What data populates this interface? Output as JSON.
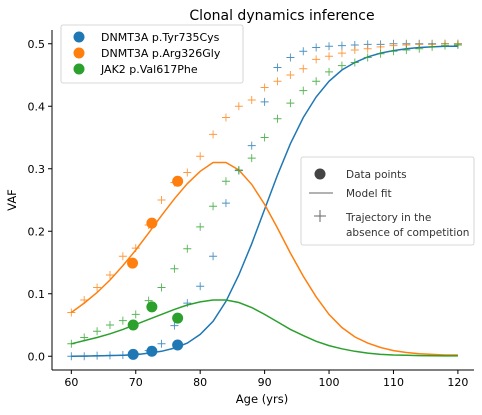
{
  "chart_data": {
    "type": "scatter",
    "title": "Clonal dynamics inference",
    "xlabel": "Age (yrs)",
    "ylabel": "VAF",
    "xlim": [
      57,
      122.5
    ],
    "ylim": [
      -0.022,
      0.522
    ],
    "x_ticks": [
      60,
      70,
      80,
      90,
      100,
      110,
      120
    ],
    "y_ticks": [
      0.0,
      0.1,
      0.2,
      0.3,
      0.4,
      0.5
    ],
    "x_tick_labels": [
      "60",
      "70",
      "80",
      "90",
      "100",
      "110",
      "120"
    ],
    "y_tick_labels": [
      "0.0",
      "0.1",
      "0.2",
      "0.3",
      "0.4",
      "0.5"
    ],
    "grid": false,
    "series": [
      {
        "name": "DNMT3A p.Tyr735Cys",
        "color": "#1f77b4",
        "data_points": {
          "x": [
            69.6,
            72.5,
            76.5
          ],
          "y": [
            0.003,
            0.008,
            0.018
          ]
        },
        "model_fit": {
          "x": [
            60,
            64,
            68,
            70,
            72,
            74,
            76,
            78,
            80,
            82,
            84,
            86,
            88,
            90,
            92,
            94,
            96,
            98,
            100,
            102,
            104,
            106,
            108,
            110,
            112,
            114,
            116,
            118,
            120
          ],
          "y": [
            0.0,
            0.0005,
            0.0015,
            0.0025,
            0.005,
            0.008,
            0.013,
            0.021,
            0.035,
            0.056,
            0.088,
            0.13,
            0.18,
            0.235,
            0.29,
            0.34,
            0.382,
            0.415,
            0.44,
            0.458,
            0.47,
            0.479,
            0.485,
            0.489,
            0.492,
            0.494,
            0.495,
            0.496,
            0.496
          ]
        },
        "trajectory": {
          "x": [
            60,
            62,
            64,
            66,
            68,
            70,
            72,
            74,
            76,
            78,
            80,
            82,
            84,
            86,
            88,
            90,
            92,
            94,
            96,
            98,
            100,
            102,
            104,
            106,
            108,
            110,
            112,
            114,
            116,
            118,
            120
          ],
          "y": [
            0.0,
            0.0,
            0.001,
            0.0015,
            0.002,
            0.004,
            0.009,
            0.02,
            0.049,
            0.085,
            0.112,
            0.16,
            0.245,
            0.297,
            0.337,
            0.407,
            0.462,
            0.478,
            0.488,
            0.494,
            0.496,
            0.497,
            0.498,
            0.499,
            0.499,
            0.5,
            0.5,
            0.5,
            0.5,
            0.5,
            0.5
          ]
        }
      },
      {
        "name": "DNMT3A p.Arg326Gly",
        "color": "#ff7f0e",
        "data_points": {
          "x": [
            69.5,
            72.5,
            76.5
          ],
          "y": [
            0.149,
            0.213,
            0.28
          ]
        },
        "model_fit": {
          "x": [
            60,
            62,
            64,
            66,
            68,
            70,
            72,
            74,
            76,
            78,
            80,
            82,
            84,
            86,
            88,
            90,
            92,
            94,
            96,
            98,
            100,
            102,
            104,
            106,
            108,
            110,
            112,
            114,
            116,
            118,
            120
          ],
          "y": [
            0.07,
            0.085,
            0.102,
            0.122,
            0.145,
            0.17,
            0.197,
            0.225,
            0.252,
            0.276,
            0.296,
            0.31,
            0.31,
            0.298,
            0.275,
            0.243,
            0.205,
            0.165,
            0.128,
            0.095,
            0.067,
            0.046,
            0.031,
            0.021,
            0.014,
            0.009,
            0.006,
            0.004,
            0.003,
            0.002,
            0.002
          ]
        },
        "trajectory": {
          "x": [
            60,
            62,
            64,
            66,
            68,
            70,
            72,
            74,
            76,
            78,
            80,
            82,
            84,
            86,
            88,
            90,
            92,
            94,
            96,
            98,
            100,
            102,
            104,
            106,
            108,
            110,
            112,
            114,
            116,
            118,
            120
          ],
          "y": [
            0.07,
            0.09,
            0.11,
            0.13,
            0.16,
            0.173,
            0.21,
            0.25,
            0.278,
            0.294,
            0.32,
            0.355,
            0.382,
            0.4,
            0.41,
            0.43,
            0.44,
            0.45,
            0.46,
            0.475,
            0.48,
            0.485,
            0.49,
            0.492,
            0.495,
            0.497,
            0.498,
            0.499,
            0.499,
            0.5,
            0.5
          ]
        }
      },
      {
        "name": "JAK2 p.Val617Phe",
        "color": "#2ca02c",
        "data_points": {
          "x": [
            69.6,
            72.5,
            76.5
          ],
          "y": [
            0.05,
            0.079,
            0.061
          ]
        },
        "model_fit": {
          "x": [
            60,
            62,
            64,
            66,
            68,
            70,
            72,
            74,
            76,
            78,
            80,
            82,
            84,
            86,
            88,
            90,
            92,
            94,
            96,
            98,
            100,
            102,
            104,
            106,
            108,
            110,
            112,
            114,
            116,
            118,
            120
          ],
          "y": [
            0.02,
            0.025,
            0.03,
            0.036,
            0.043,
            0.051,
            0.059,
            0.067,
            0.075,
            0.082,
            0.087,
            0.09,
            0.09,
            0.086,
            0.078,
            0.067,
            0.055,
            0.043,
            0.033,
            0.024,
            0.017,
            0.012,
            0.008,
            0.005,
            0.003,
            0.002,
            0.0015,
            0.001,
            0.0008,
            0.0006,
            0.0005
          ]
        },
        "trajectory": {
          "x": [
            60,
            62,
            64,
            66,
            68,
            70,
            72,
            74,
            76,
            78,
            80,
            82,
            84,
            86,
            88,
            90,
            92,
            94,
            96,
            98,
            100,
            102,
            104,
            106,
            108,
            110,
            112,
            114,
            116,
            118,
            120
          ],
          "y": [
            0.02,
            0.03,
            0.04,
            0.05,
            0.057,
            0.067,
            0.089,
            0.11,
            0.14,
            0.172,
            0.207,
            0.24,
            0.28,
            0.298,
            0.317,
            0.35,
            0.38,
            0.405,
            0.425,
            0.44,
            0.455,
            0.465,
            0.47,
            0.478,
            0.484,
            0.488,
            0.49,
            0.492,
            0.495,
            0.497,
            0.498
          ]
        }
      }
    ],
    "legend_series_placement": "top-left",
    "legend_marks_placement": "right",
    "legend_marks": [
      {
        "type": "data-points-circle",
        "label": "Data points",
        "color": "#444444"
      },
      {
        "type": "model-fit-line",
        "label": "Model fit",
        "color": "#999999"
      },
      {
        "type": "trajectory-plus",
        "label": "Trajectory in the absence of competition",
        "lines": [
          "Trajectory in the",
          "absence of competition"
        ],
        "color": "#666666"
      }
    ]
  }
}
